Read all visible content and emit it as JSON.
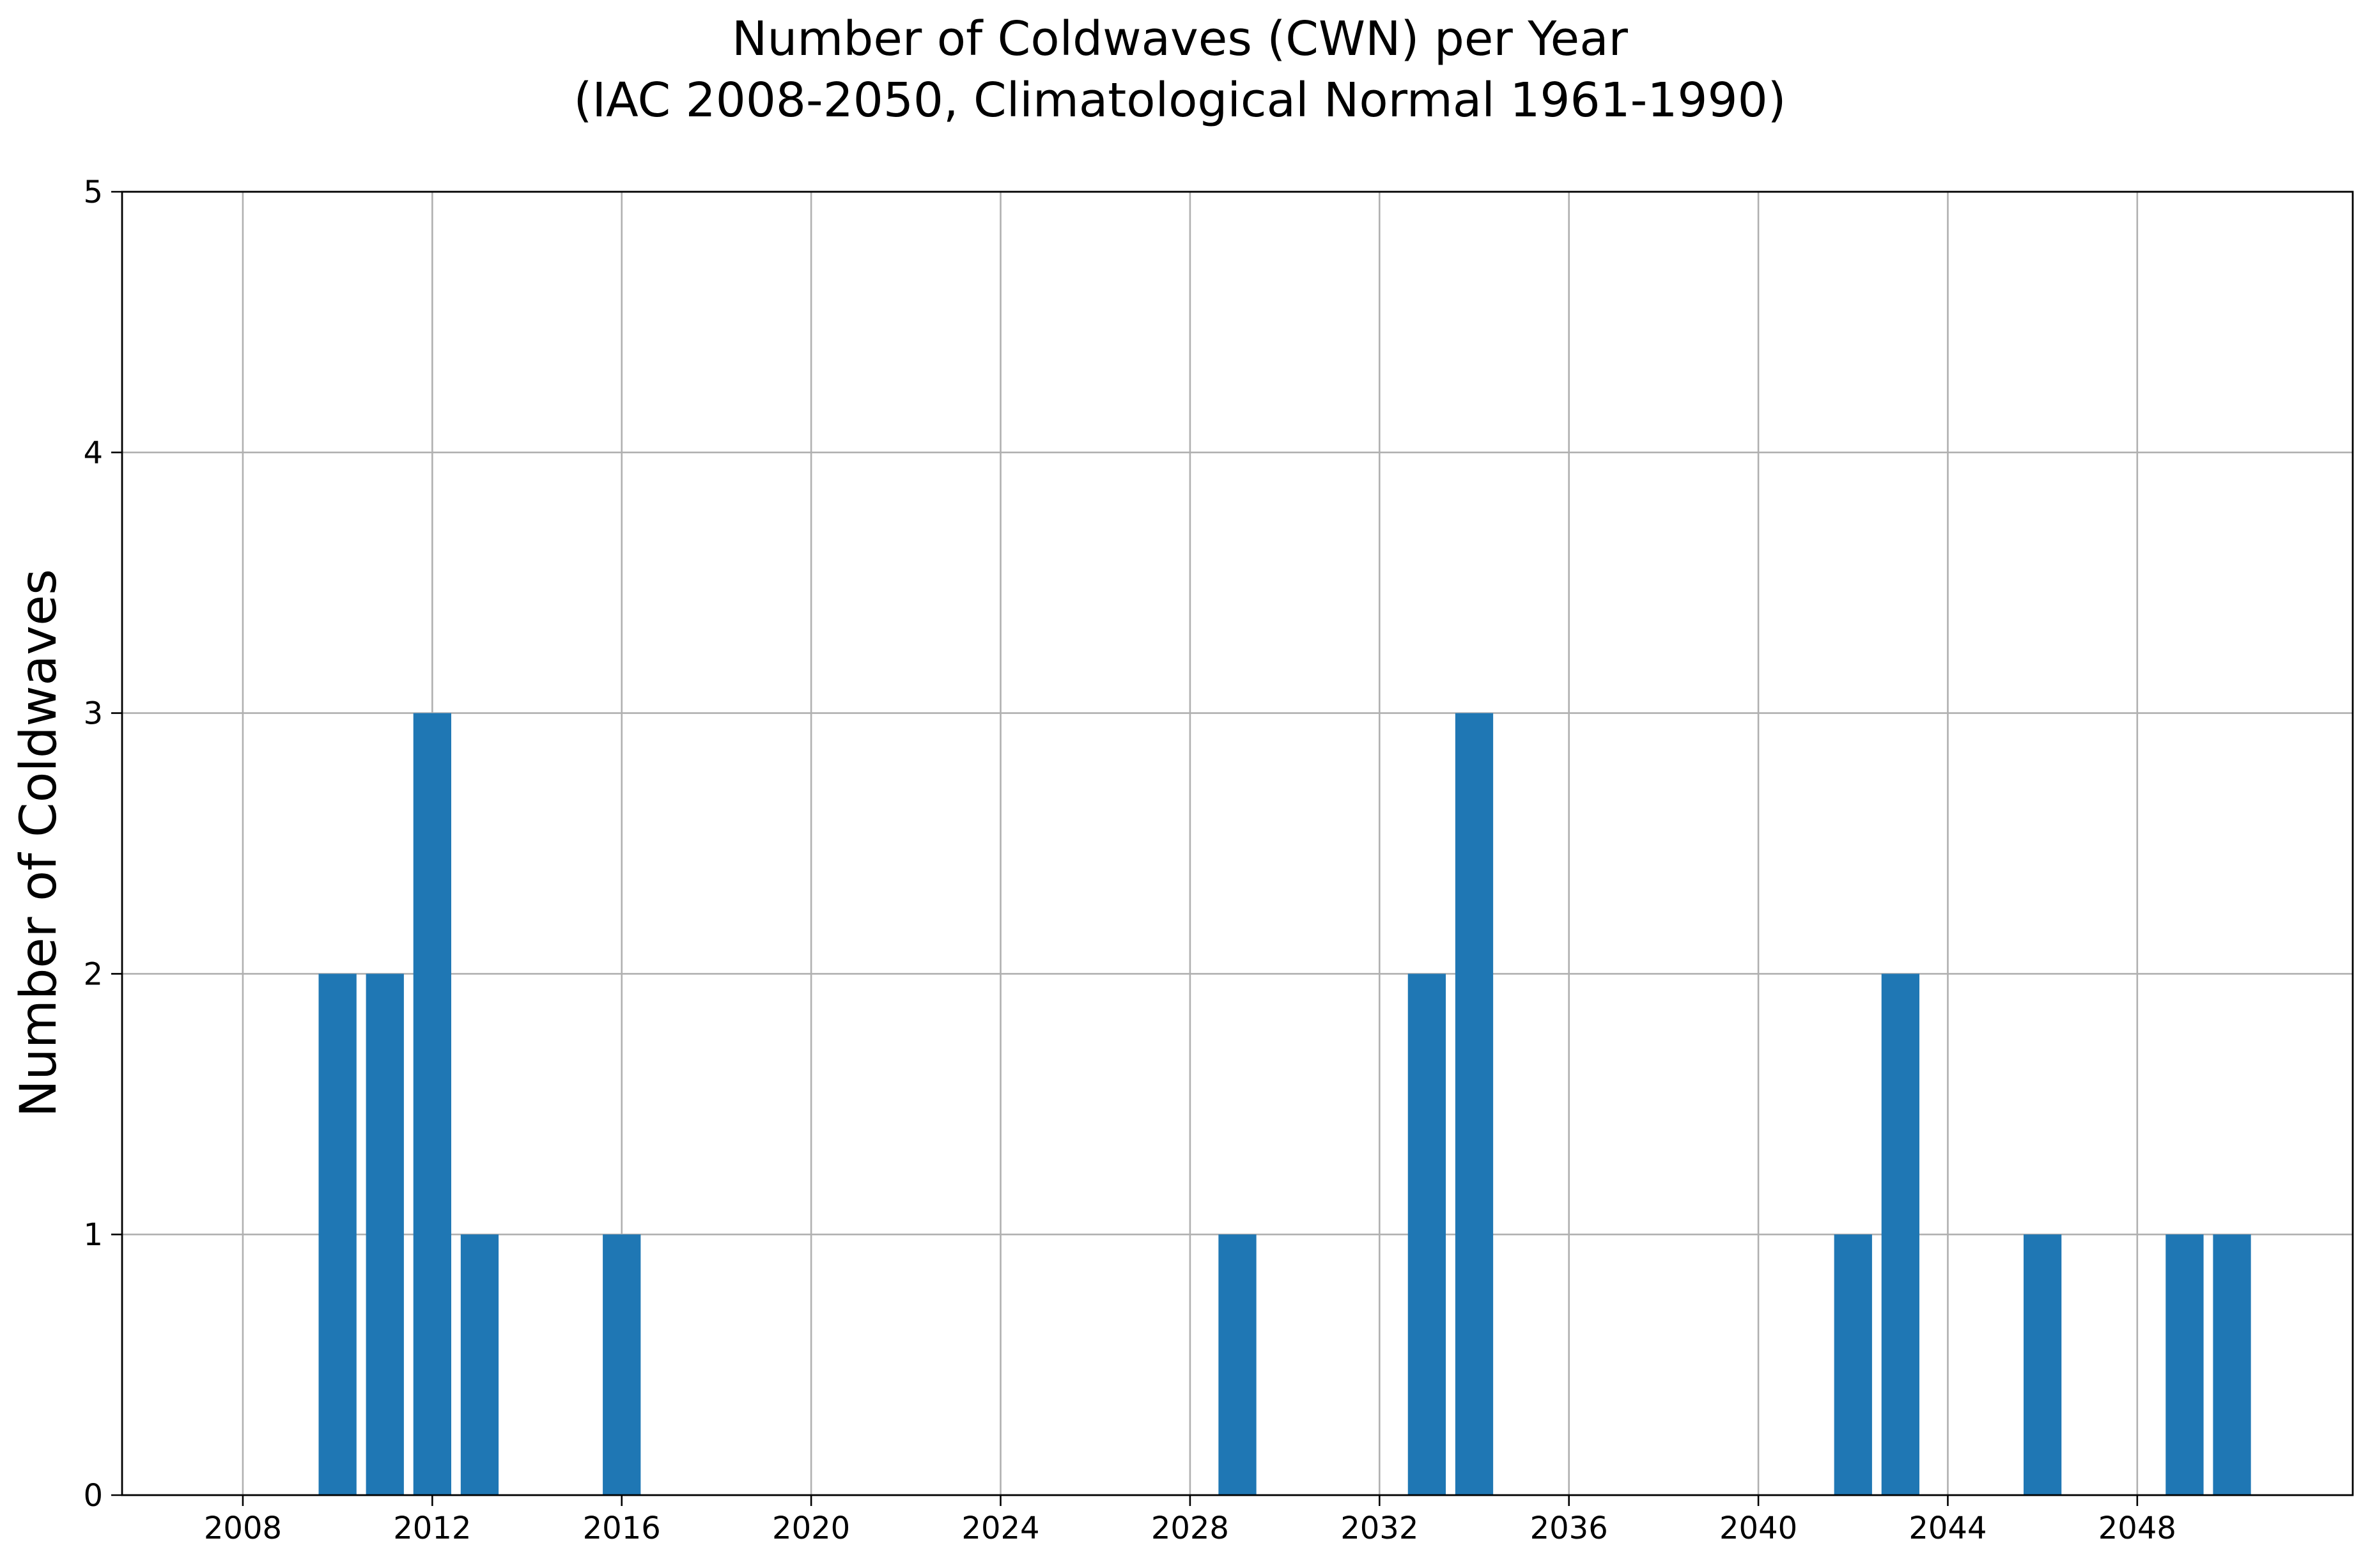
{
  "chart_data": {
    "type": "bar",
    "title": "Number of Coldwaves (CWN) per Year",
    "subtitle": "(IAC 2008-2050, Climatological Normal 1961-1990)",
    "xlabel": "",
    "ylabel": "Number of Coldwaves",
    "x": [
      2010,
      2011,
      2012,
      2013,
      2016,
      2029,
      2033,
      2034,
      2042,
      2043,
      2046,
      2049,
      2050
    ],
    "values": [
      2,
      2,
      3,
      1,
      1,
      1,
      2,
      3,
      1,
      2,
      1,
      1,
      1
    ],
    "xlim": [
      2005.45,
      2052.55
    ],
    "ylim": [
      0,
      5
    ],
    "xticks": [
      "2008",
      "2012",
      "2016",
      "2020",
      "2024",
      "2028",
      "2032",
      "2036",
      "2040",
      "2044",
      "2048"
    ],
    "yticks": [
      "0",
      "1",
      "2",
      "3",
      "4",
      "5"
    ],
    "grid": true,
    "bar_color": "#1f77b4",
    "grid_color": "#b0b0b0"
  }
}
